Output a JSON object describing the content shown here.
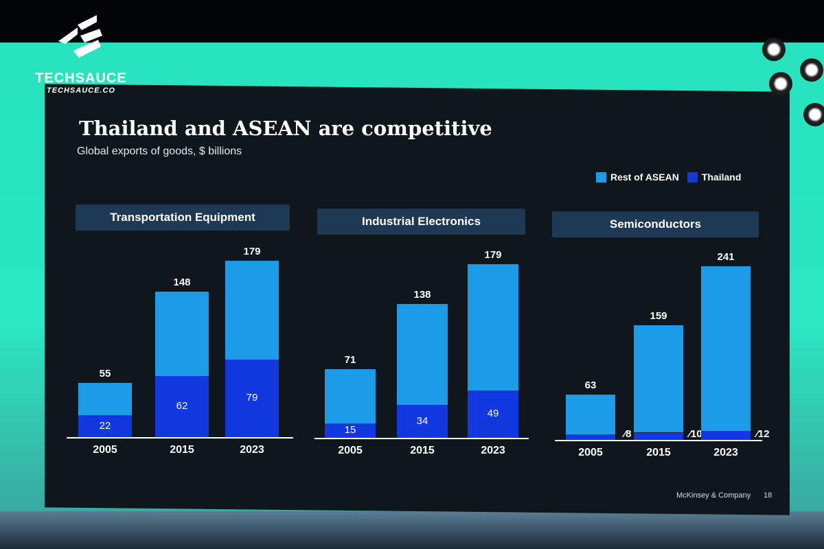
{
  "watermark": {
    "name": "TECHSAUCE",
    "url": "TECHSAUCE.CO"
  },
  "slide": {
    "title": "Thailand and ASEAN are competitive",
    "subtitle": "Global exports of goods, $ billions",
    "footer": "McKinsey & Company",
    "page": "18"
  },
  "colors": {
    "rest": "#1b9be8",
    "thailand": "#1239e0"
  },
  "chart_data": [
    {
      "type": "bar",
      "stacked": true,
      "title": "Transportation Equipment",
      "categories": [
        "2005",
        "2015",
        "2023"
      ],
      "series": [
        {
          "name": "Thailand",
          "values": [
            22,
            62,
            79
          ]
        },
        {
          "name": "Rest of ASEAN",
          "values": [
            33,
            86,
            100
          ]
        }
      ],
      "totals": [
        55,
        148,
        179
      ],
      "legend": [
        "Rest of ASEAN",
        "Thailand"
      ],
      "legend_position": "top-right",
      "grid": false
    },
    {
      "type": "bar",
      "stacked": true,
      "title": "Industrial Electronics",
      "categories": [
        "2005",
        "2015",
        "2023"
      ],
      "series": [
        {
          "name": "Thailand",
          "values": [
            15,
            34,
            49
          ]
        },
        {
          "name": "Rest of ASEAN",
          "values": [
            56,
            104,
            130
          ]
        }
      ],
      "totals": [
        71,
        138,
        179
      ],
      "grid": false
    },
    {
      "type": "bar",
      "stacked": true,
      "title": "Semiconductors",
      "categories": [
        "2005",
        "2015",
        "2023"
      ],
      "series": [
        {
          "name": "Thailand",
          "values": [
            8,
            10,
            12
          ]
        },
        {
          "name": "Rest of ASEAN",
          "values": [
            55,
            149,
            229
          ]
        }
      ],
      "totals": [
        63,
        159,
        241
      ],
      "grid": false
    }
  ]
}
